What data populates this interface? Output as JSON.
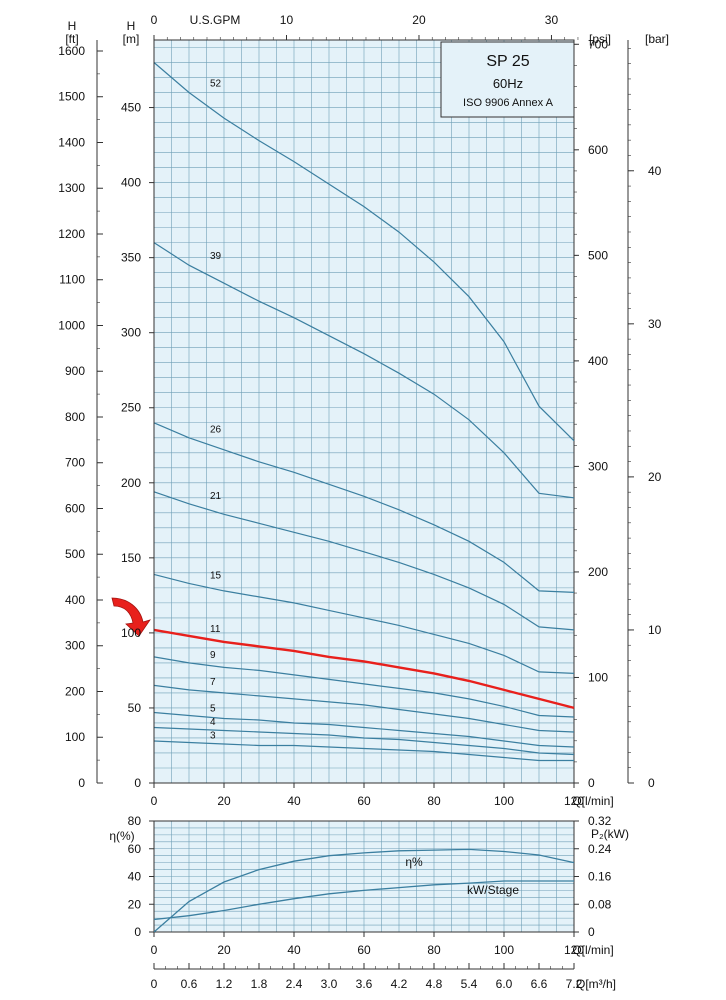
{
  "chart_data": [
    {
      "type": "line",
      "title": "SP 25",
      "subtitle": "60Hz",
      "standard": "ISO 9906 Annex A",
      "xlabel": "Q[l/min]",
      "ylabel": "H\n[m]",
      "xlim": [
        0,
        120
      ],
      "ylim": [
        0,
        495
      ],
      "x_ticks": [
        0,
        20,
        40,
        60,
        80,
        100,
        120
      ],
      "y_ticks": [
        0,
        50,
        100,
        150,
        200,
        250,
        300,
        350,
        400,
        450
      ],
      "secondary_axes": {
        "ft": {
          "label": "H\n[ft]",
          "ticks": [
            0,
            100,
            200,
            300,
            400,
            500,
            600,
            700,
            800,
            900,
            1000,
            1100,
            1200,
            1300,
            1400,
            1500,
            1600
          ]
        },
        "psi": {
          "label": "[psi]",
          "ticks": [
            0,
            100,
            200,
            300,
            400,
            500,
            600,
            700
          ]
        },
        "bar": {
          "label": "[bar]",
          "ticks": [
            0,
            10,
            20,
            30,
            40
          ]
        },
        "gpm": {
          "label": "U.S.GPM",
          "ticks": [
            0,
            10,
            20,
            30
          ]
        }
      },
      "grid": true,
      "highlight_color": "#e8201c",
      "line_color": "#3b7fa0",
      "background": "#e4f2f9",
      "series": [
        {
          "name": "52",
          "highlight": false,
          "x": [
            0,
            10,
            20,
            30,
            40,
            50,
            60,
            70,
            80,
            90,
            100,
            110,
            120
          ],
          "values": [
            480,
            460,
            443,
            428,
            414,
            399,
            384,
            367,
            347,
            324,
            294,
            251,
            228
          ]
        },
        {
          "name": "39",
          "highlight": false,
          "x": [
            0,
            10,
            20,
            30,
            40,
            50,
            60,
            70,
            80,
            90,
            100,
            110,
            120
          ],
          "values": [
            360,
            345,
            333,
            321,
            310,
            298,
            286,
            273,
            259,
            242,
            220,
            193,
            190
          ]
        },
        {
          "name": "26",
          "highlight": false,
          "x": [
            0,
            10,
            20,
            30,
            40,
            50,
            60,
            70,
            80,
            90,
            100,
            110,
            120
          ],
          "values": [
            240,
            230,
            222,
            214,
            207,
            199,
            191,
            182,
            172,
            161,
            147,
            128,
            127
          ]
        },
        {
          "name": "21",
          "highlight": false,
          "x": [
            0,
            10,
            20,
            30,
            40,
            50,
            60,
            70,
            80,
            90,
            100,
            110,
            120
          ],
          "values": [
            194,
            186,
            179,
            173,
            167,
            161,
            154,
            147,
            139,
            130,
            119,
            104,
            102
          ]
        },
        {
          "name": "15",
          "highlight": false,
          "x": [
            0,
            10,
            20,
            30,
            40,
            50,
            60,
            70,
            80,
            90,
            100,
            110,
            120
          ],
          "values": [
            139,
            133,
            128,
            124,
            120,
            115,
            110,
            105,
            99,
            93,
            85,
            74,
            73
          ]
        },
        {
          "name": "11",
          "highlight": true,
          "x": [
            0,
            10,
            20,
            30,
            40,
            50,
            60,
            70,
            80,
            90,
            100,
            110,
            120
          ],
          "values": [
            102,
            98,
            94,
            91,
            88,
            84,
            81,
            77,
            73,
            68,
            62,
            56,
            50
          ]
        },
        {
          "name": "9",
          "highlight": false,
          "x": [
            0,
            10,
            20,
            30,
            40,
            50,
            60,
            70,
            80,
            90,
            100,
            110,
            120
          ],
          "values": [
            84,
            80,
            77,
            75,
            72,
            69,
            66,
            63,
            60,
            56,
            51,
            45,
            44
          ]
        },
        {
          "name": "7",
          "highlight": false,
          "x": [
            0,
            10,
            20,
            30,
            40,
            50,
            60,
            70,
            80,
            90,
            100,
            110,
            120
          ],
          "values": [
            65,
            62,
            60,
            58,
            56,
            54,
            52,
            49,
            46,
            43,
            39,
            35,
            34
          ]
        },
        {
          "name": "5",
          "highlight": false,
          "x": [
            0,
            10,
            20,
            30,
            40,
            50,
            60,
            70,
            80,
            90,
            100,
            110,
            120
          ],
          "values": [
            47,
            45,
            43,
            42,
            40,
            39,
            37,
            35,
            33,
            31,
            28,
            25,
            24
          ]
        },
        {
          "name": "4",
          "highlight": false,
          "x": [
            0,
            10,
            20,
            30,
            40,
            50,
            60,
            70,
            80,
            90,
            100,
            110,
            120
          ],
          "values": [
            37,
            36,
            35,
            34,
            33,
            32,
            30,
            29,
            27,
            25,
            23,
            20,
            19
          ]
        },
        {
          "name": "3",
          "highlight": false,
          "x": [
            0,
            10,
            20,
            30,
            40,
            50,
            60,
            70,
            80,
            90,
            100,
            110,
            120
          ],
          "values": [
            28,
            27,
            26,
            25,
            25,
            24,
            23,
            22,
            21,
            19,
            17,
            15,
            15
          ]
        }
      ]
    },
    {
      "type": "line",
      "xlabel": "Q[l/min]",
      "ylabel": "η(%)",
      "xlim": [
        0,
        120
      ],
      "ylim": [
        0,
        80
      ],
      "x_ticks": [
        0,
        20,
        40,
        60,
        80,
        100,
        120
      ],
      "y_ticks": [
        0,
        20,
        40,
        60,
        80
      ],
      "secondary_axes": {
        "kw": {
          "label": "P₂(kW)",
          "ticks": [
            "0",
            "0.08",
            "0.16",
            "0.24",
            "0.32"
          ]
        },
        "m3h": {
          "label": "Q[m³/h]",
          "ticks": [
            "0",
            "0.6",
            "1.2",
            "1.8",
            "2.4",
            "3.0",
            "3.6",
            "4.2",
            "4.8",
            "5.4",
            "6.0",
            "6.6",
            "7.2"
          ]
        }
      },
      "grid": true,
      "series": [
        {
          "name": "η%",
          "axis": "left",
          "x": [
            0,
            10,
            20,
            30,
            40,
            50,
            60,
            70,
            80,
            90,
            100,
            110,
            120
          ],
          "values": [
            0,
            22,
            36,
            45,
            51,
            55,
            57,
            58.5,
            59,
            59.5,
            58,
            55.5,
            50
          ]
        },
        {
          "name": "kW/Stage",
          "axis": "right",
          "x": [
            0,
            10,
            20,
            30,
            40,
            50,
            60,
            70,
            80,
            90,
            100,
            110,
            120
          ],
          "values": [
            0.036,
            0.047,
            0.062,
            0.08,
            0.096,
            0.11,
            0.12,
            0.128,
            0.136,
            0.141,
            0.147,
            0.147,
            0.147
          ]
        }
      ]
    }
  ]
}
